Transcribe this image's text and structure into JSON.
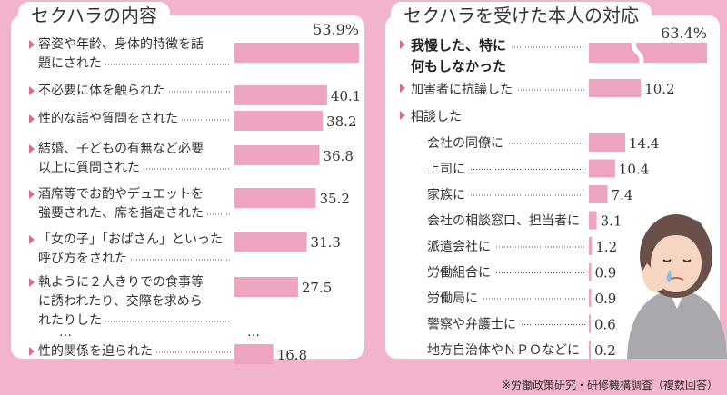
{
  "titles": {
    "left": "セクハラの内容",
    "right": "セクハラを受けた本人の対応"
  },
  "footer": {
    "source": "※労働政策研究・研修機構調査（複数回答）"
  },
  "colors": {
    "bar": "#eda4c1",
    "bullet": "#d86b94",
    "background": "#f2b3cd",
    "panel": "#ffffff"
  },
  "chart_data": [
    {
      "type": "bar",
      "orientation": "horizontal",
      "title": "セクハラの内容",
      "unit": "%",
      "categories": [
        [
          "容姿や年齢、身体的特徴を話",
          "題にされた"
        ],
        [
          "不必要に体を触られた"
        ],
        [
          "性的な話や質問をされた"
        ],
        [
          "結婚、子どもの有無など必要",
          "以上に質問された"
        ],
        [
          "酒席等でお酌やデュエットを",
          "強要された、席を指定された"
        ],
        [
          "「女の子」「おばさん」といった",
          "呼び方をされた"
        ],
        [
          "執ように２人きりでの食事等",
          "に誘われたり、交際を求めら",
          "れたりした"
        ],
        [
          "性的関係を迫られた"
        ]
      ],
      "values": [
        53.9,
        40.1,
        38.2,
        36.8,
        35.2,
        31.3,
        27.5,
        16.8
      ],
      "value_labels": [
        "53.9%",
        "40.1",
        "38.2",
        "36.8",
        "35.2",
        "31.3",
        "27.5",
        "16.8"
      ],
      "ellipsis": "…"
    },
    {
      "type": "bar",
      "orientation": "horizontal",
      "title": "セクハラを受けた本人の対応",
      "unit": "%",
      "axis_break_on": "我慢した、特に何もしなかった",
      "groups": [
        {
          "label": [
            "我慢した、特に",
            "何もしなかった"
          ],
          "value": 63.4,
          "value_label": "63.4%"
        },
        {
          "label": [
            "加害者に抗議した"
          ],
          "value": 10.2,
          "value_label": "10.2"
        },
        {
          "label": [
            "相談した"
          ],
          "value": null,
          "value_label": ""
        }
      ],
      "sub_items": [
        {
          "label": "会社の同僚に",
          "value": 14.4,
          "value_label": "14.4"
        },
        {
          "label": "上司に",
          "value": 10.4,
          "value_label": "10.4"
        },
        {
          "label": "家族に",
          "value": 7.4,
          "value_label": "7.4"
        },
        {
          "label": "会社の相談窓口、担当者に",
          "value": 3.1,
          "value_label": "3.1"
        },
        {
          "label": "派遣会社に",
          "value": 1.2,
          "value_label": "1.2"
        },
        {
          "label": "労働組合に",
          "value": 0.9,
          "value_label": "0.9"
        },
        {
          "label": "労働局に",
          "value": 0.9,
          "value_label": "0.9"
        },
        {
          "label": "警察や弁護士に",
          "value": 0.6,
          "value_label": "0.6"
        },
        {
          "label": "地方自治体やＮＰＯなどに",
          "value": 0.2,
          "value_label": "0.2"
        }
      ]
    }
  ]
}
